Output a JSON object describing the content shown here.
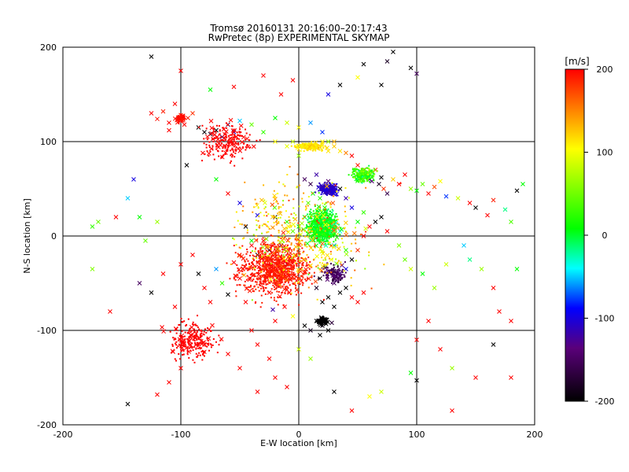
{
  "chart_data": {
    "type": "scatter",
    "title": "Tromsø 20160131 20:16:00–20:17:43",
    "subtitle": "RwPretec (8p) EXPERIMENTAL SKYMAP",
    "xlabel": "E-W location [km]",
    "ylabel": "N-S location [km]",
    "xlim": [
      -200,
      200
    ],
    "ylim": [
      -200,
      200
    ],
    "xticks": [
      "-200",
      "-100",
      "0",
      "100",
      "200"
    ],
    "yticks": [
      "-200",
      "-100",
      "0",
      "100",
      "200"
    ],
    "grid": true,
    "colorbar": {
      "label": "[m/s]",
      "min": -200,
      "max": 200,
      "ticks": [
        "-200",
        "-100",
        "0",
        "100",
        "200"
      ],
      "colors": [
        "#000000",
        "#5a007a",
        "#0000ff",
        "#00ffff",
        "#00ff00",
        "#ffff00",
        "#ff0000"
      ]
    },
    "markers": [
      "x",
      "dot"
    ],
    "points": [
      [
        -125,
        130,
        200,
        "x"
      ],
      [
        -120,
        124,
        195,
        "x"
      ],
      [
        -115,
        132,
        190,
        "x"
      ],
      [
        -110,
        120,
        200,
        "x"
      ],
      [
        -100,
        128,
        185,
        "x"
      ],
      [
        -97,
        118,
        200,
        "x"
      ],
      [
        -94,
        125,
        190,
        "x"
      ],
      [
        -105,
        140,
        200,
        "x"
      ],
      [
        -110,
        112,
        200,
        "x"
      ],
      [
        -90,
        130,
        180,
        "x"
      ],
      [
        -85,
        115,
        -200,
        "x"
      ],
      [
        -80,
        110,
        -195,
        "x"
      ],
      [
        -75,
        108,
        -180,
        "x"
      ],
      [
        -70,
        112,
        -200,
        "x"
      ],
      [
        -65,
        105,
        -150,
        "x"
      ],
      [
        -60,
        118,
        -160,
        "x"
      ],
      [
        -55,
        110,
        -100,
        "x"
      ],
      [
        -50,
        122,
        -50,
        "x"
      ],
      [
        -40,
        118,
        40,
        "x"
      ],
      [
        -30,
        110,
        20,
        "x"
      ],
      [
        -20,
        125,
        0,
        "x"
      ],
      [
        -10,
        120,
        80,
        "x"
      ],
      [
        0,
        115,
        100,
        "x"
      ],
      [
        10,
        120,
        -60,
        "x"
      ],
      [
        20,
        110,
        -80,
        "x"
      ],
      [
        25,
        100,
        60,
        "x"
      ],
      [
        30,
        95,
        120,
        "x"
      ],
      [
        35,
        90,
        110,
        "x"
      ],
      [
        40,
        88,
        150,
        "x"
      ],
      [
        45,
        85,
        200,
        "x"
      ],
      [
        50,
        75,
        190,
        "x"
      ],
      [
        55,
        70,
        160,
        "x"
      ],
      [
        58,
        65,
        -100,
        "x"
      ],
      [
        60,
        60,
        -120,
        "x"
      ],
      [
        62,
        58,
        -140,
        "x"
      ],
      [
        65,
        70,
        180,
        "x"
      ],
      [
        68,
        55,
        -180,
        "x"
      ],
      [
        70,
        62,
        -200,
        "x"
      ],
      [
        72,
        50,
        180,
        "x"
      ],
      [
        75,
        45,
        -160,
        "x"
      ],
      [
        80,
        60,
        120,
        "x"
      ],
      [
        85,
        55,
        200,
        "x"
      ],
      [
        90,
        65,
        200,
        "x"
      ],
      [
        95,
        50,
        60,
        "x"
      ],
      [
        100,
        48,
        0,
        "x"
      ],
      [
        105,
        55,
        40,
        "x"
      ],
      [
        110,
        45,
        200,
        "x"
      ],
      [
        115,
        52,
        170,
        "x"
      ],
      [
        120,
        58,
        100,
        "x"
      ],
      [
        125,
        42,
        -80,
        "x"
      ],
      [
        135,
        40,
        80,
        "x"
      ],
      [
        145,
        35,
        200,
        "x"
      ],
      [
        150,
        30,
        -200,
        "x"
      ],
      [
        160,
        22,
        200,
        "x"
      ],
      [
        165,
        38,
        190,
        "x"
      ],
      [
        175,
        28,
        -20,
        "x"
      ],
      [
        180,
        15,
        30,
        "x"
      ],
      [
        185,
        48,
        -200,
        "x"
      ],
      [
        190,
        55,
        0,
        "x"
      ],
      [
        -100,
        175,
        200,
        "x"
      ],
      [
        -125,
        190,
        -200,
        "x"
      ],
      [
        80,
        195,
        -200,
        "x"
      ],
      [
        75,
        185,
        -180,
        "x"
      ],
      [
        95,
        178,
        -200,
        "x"
      ],
      [
        100,
        172,
        -150,
        "x"
      ],
      [
        55,
        182,
        -200,
        "x"
      ],
      [
        70,
        160,
        -200,
        "x"
      ],
      [
        50,
        168,
        100,
        "x"
      ],
      [
        35,
        160,
        -200,
        "x"
      ],
      [
        25,
        150,
        -100,
        "x"
      ],
      [
        -30,
        170,
        200,
        "x"
      ],
      [
        -15,
        150,
        200,
        "x"
      ],
      [
        -5,
        165,
        200,
        "x"
      ],
      [
        -55,
        158,
        200,
        "x"
      ],
      [
        -75,
        155,
        0,
        "x"
      ],
      [
        -135,
        20,
        0,
        "x"
      ],
      [
        -145,
        40,
        -50,
        "x"
      ],
      [
        -170,
        15,
        40,
        "x"
      ],
      [
        -175,
        10,
        20,
        "x"
      ],
      [
        -155,
        20,
        200,
        "x"
      ],
      [
        -175,
        -35,
        50,
        "x"
      ],
      [
        -160,
        -80,
        200,
        "x"
      ],
      [
        -135,
        -50,
        -150,
        "x"
      ],
      [
        -125,
        -60,
        -200,
        "x"
      ],
      [
        -115,
        -40,
        200,
        "x"
      ],
      [
        -105,
        -75,
        200,
        "x"
      ],
      [
        -100,
        -30,
        200,
        "x"
      ],
      [
        -90,
        -20,
        200,
        "x"
      ],
      [
        -85,
        -40,
        -200,
        "x"
      ],
      [
        -80,
        -55,
        200,
        "x"
      ],
      [
        -75,
        -70,
        200,
        "x"
      ],
      [
        -70,
        -35,
        -60,
        "x"
      ],
      [
        -65,
        -50,
        20,
        "x"
      ],
      [
        -60,
        -62,
        -200,
        "x"
      ],
      [
        -55,
        -28,
        200,
        "x"
      ],
      [
        -50,
        -45,
        200,
        "x"
      ],
      [
        -45,
        -70,
        200,
        "x"
      ],
      [
        -40,
        -10,
        200,
        "x"
      ],
      [
        -35,
        -20,
        -200,
        "x"
      ],
      [
        -30,
        -5,
        200,
        "x"
      ],
      [
        -28,
        -35,
        180,
        "x"
      ],
      [
        -25,
        -60,
        200,
        "x"
      ],
      [
        -22,
        -78,
        -120,
        "x"
      ],
      [
        -20,
        -90,
        200,
        "x"
      ],
      [
        -18,
        -15,
        60,
        "x"
      ],
      [
        -15,
        -45,
        200,
        "x"
      ],
      [
        -12,
        -75,
        200,
        "x"
      ],
      [
        -10,
        -30,
        -180,
        "x"
      ],
      [
        -8,
        -60,
        200,
        "x"
      ],
      [
        -5,
        -85,
        100,
        "x"
      ],
      [
        -3,
        -20,
        200,
        "x"
      ],
      [
        -40,
        -100,
        200,
        "x"
      ],
      [
        -35,
        -115,
        200,
        "x"
      ],
      [
        -25,
        -130,
        200,
        "x"
      ],
      [
        -50,
        -140,
        200,
        "x"
      ],
      [
        -60,
        -125,
        200,
        "x"
      ],
      [
        -80,
        -115,
        200,
        "x"
      ],
      [
        -100,
        -140,
        200,
        "x"
      ],
      [
        -110,
        -155,
        200,
        "x"
      ],
      [
        -20,
        -150,
        200,
        "x"
      ],
      [
        -10,
        -160,
        200,
        "x"
      ],
      [
        -35,
        -165,
        200,
        "x"
      ],
      [
        5,
        -95,
        -200,
        "x"
      ],
      [
        10,
        -100,
        -180,
        "x"
      ],
      [
        15,
        -90,
        -200,
        "x"
      ],
      [
        18,
        -105,
        -200,
        "x"
      ],
      [
        20,
        -95,
        -190,
        "x"
      ],
      [
        22,
        -88,
        -200,
        "x"
      ],
      [
        25,
        -100,
        -200,
        "x"
      ],
      [
        28,
        -92,
        -170,
        "x"
      ],
      [
        20,
        -70,
        -200,
        "x"
      ],
      [
        25,
        -65,
        -200,
        "x"
      ],
      [
        30,
        -75,
        -200,
        "x"
      ],
      [
        35,
        -60,
        -200,
        "x"
      ],
      [
        15,
        -55,
        -180,
        "x"
      ],
      [
        18,
        -45,
        -200,
        "x"
      ],
      [
        30,
        -50,
        -150,
        "x"
      ],
      [
        40,
        -55,
        -200,
        "x"
      ],
      [
        45,
        -65,
        200,
        "x"
      ],
      [
        50,
        -70,
        200,
        "x"
      ],
      [
        55,
        -60,
        200,
        "x"
      ],
      [
        35,
        -40,
        -120,
        "x"
      ],
      [
        40,
        -35,
        -100,
        "x"
      ],
      [
        45,
        -25,
        -200,
        "x"
      ],
      [
        50,
        -15,
        180,
        "x"
      ],
      [
        55,
        0,
        200,
        "x"
      ],
      [
        60,
        10,
        200,
        "x"
      ],
      [
        65,
        15,
        -200,
        "x"
      ],
      [
        70,
        20,
        -200,
        "x"
      ],
      [
        75,
        5,
        200,
        "x"
      ],
      [
        85,
        -10,
        50,
        "x"
      ],
      [
        90,
        -25,
        40,
        "x"
      ],
      [
        95,
        -35,
        80,
        "x"
      ],
      [
        105,
        -40,
        0,
        "x"
      ],
      [
        115,
        -55,
        60,
        "x"
      ],
      [
        125,
        -30,
        80,
        "x"
      ],
      [
        140,
        -10,
        -50,
        "x"
      ],
      [
        145,
        -25,
        -20,
        "x"
      ],
      [
        155,
        -35,
        60,
        "x"
      ],
      [
        165,
        -55,
        200,
        "x"
      ],
      [
        170,
        -80,
        200,
        "x"
      ],
      [
        180,
        -90,
        200,
        "x"
      ],
      [
        185,
        -35,
        0,
        "x"
      ],
      [
        110,
        -90,
        200,
        "x"
      ],
      [
        100,
        -110,
        200,
        "x"
      ],
      [
        120,
        -120,
        200,
        "x"
      ],
      [
        130,
        -140,
        60,
        "x"
      ],
      [
        150,
        -150,
        200,
        "x"
      ],
      [
        165,
        -115,
        -200,
        "x"
      ],
      [
        180,
        -150,
        200,
        "x"
      ],
      [
        130,
        -185,
        200,
        "x"
      ],
      [
        100,
        -153,
        -200,
        "x"
      ],
      [
        95,
        -145,
        0,
        "x"
      ],
      [
        70,
        -165,
        80,
        "x"
      ],
      [
        60,
        -170,
        100,
        "x"
      ],
      [
        45,
        -185,
        200,
        "x"
      ],
      [
        30,
        -165,
        -200,
        "x"
      ],
      [
        10,
        -130,
        60,
        "x"
      ],
      [
        0,
        -120,
        80,
        "x"
      ],
      [
        -145,
        -178,
        -200,
        "x"
      ],
      [
        -120,
        -168,
        200,
        "x"
      ],
      [
        5,
        60,
        -150,
        "x"
      ],
      [
        10,
        55,
        -160,
        "x"
      ],
      [
        15,
        65,
        -120,
        "x"
      ],
      [
        20,
        50,
        -100,
        "x"
      ],
      [
        25,
        58,
        -140,
        "x"
      ],
      [
        12,
        45,
        0,
        "x"
      ],
      [
        18,
        40,
        20,
        "x"
      ],
      [
        8,
        35,
        40,
        "x"
      ],
      [
        22,
        30,
        0,
        "x"
      ],
      [
        28,
        25,
        -20,
        "x"
      ],
      [
        5,
        20,
        0,
        "x"
      ],
      [
        15,
        15,
        20,
        "x"
      ],
      [
        25,
        10,
        0,
        "x"
      ],
      [
        35,
        5,
        -40,
        "x"
      ],
      [
        10,
        0,
        20,
        "x"
      ],
      [
        20,
        -5,
        40,
        "x"
      ],
      [
        30,
        -10,
        -60,
        "x"
      ],
      [
        40,
        -15,
        20,
        "x"
      ],
      [
        -5,
        5,
        40,
        "x"
      ],
      [
        0,
        10,
        0,
        "x"
      ],
      [
        -10,
        15,
        20,
        "x"
      ],
      [
        -20,
        20,
        -200,
        "x"
      ],
      [
        -15,
        -10,
        -150,
        "x"
      ],
      [
        -25,
        -15,
        -200,
        "x"
      ],
      [
        -35,
        22,
        -100,
        "x"
      ],
      [
        -40,
        -5,
        0,
        "x"
      ],
      [
        50,
        15,
        0,
        "x"
      ],
      [
        55,
        25,
        20,
        "x"
      ],
      [
        45,
        30,
        -100,
        "x"
      ],
      [
        40,
        40,
        -120,
        "x"
      ],
      [
        35,
        50,
        -200,
        "x"
      ],
      [
        30,
        15,
        40,
        "x"
      ],
      [
        20,
        100,
        100,
        "x"
      ],
      [
        15,
        95,
        120,
        "x"
      ],
      [
        25,
        90,
        110,
        "x"
      ],
      [
        30,
        100,
        130,
        "x"
      ],
      [
        -5,
        100,
        80,
        "x"
      ],
      [
        -10,
        95,
        90,
        "x"
      ],
      [
        -20,
        100,
        100,
        "x"
      ],
      [
        0,
        85,
        60,
        "x"
      ],
      [
        -120,
        15,
        60,
        "x"
      ],
      [
        -130,
        -5,
        40,
        "x"
      ],
      [
        -140,
        60,
        -100,
        "x"
      ],
      [
        -95,
        75,
        -200,
        "x"
      ],
      [
        -70,
        60,
        0,
        "x"
      ],
      [
        -60,
        45,
        200,
        "x"
      ],
      [
        -50,
        35,
        -100,
        "x"
      ],
      [
        -45,
        10,
        -200,
        "x"
      ]
    ]
  }
}
